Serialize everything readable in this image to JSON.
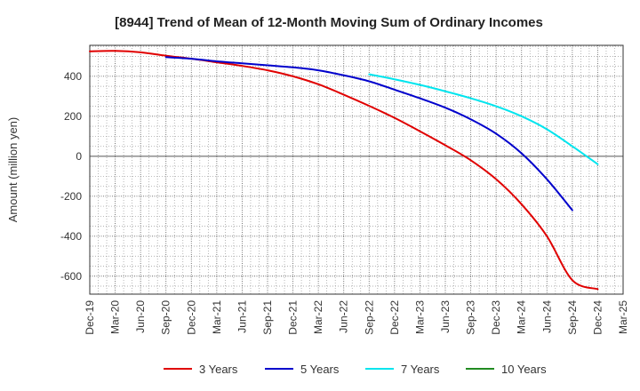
{
  "chart_data": {
    "type": "line",
    "title": "[8944]  Trend of Mean of 12-Month Moving Sum of Ordinary Incomes",
    "xlabel": "",
    "ylabel": "Amount (million yen)",
    "ylim": [
      -690,
      555
    ],
    "yticks": [
      -600,
      -400,
      -200,
      0,
      200,
      400
    ],
    "x_categories": [
      "Dec-19",
      "Mar-20",
      "Jun-20",
      "Sep-20",
      "Dec-20",
      "Mar-21",
      "Jun-21",
      "Sep-21",
      "Dec-21",
      "Mar-22",
      "Jun-22",
      "Sep-22",
      "Dec-22",
      "Mar-23",
      "Jun-23",
      "Sep-23",
      "Dec-23",
      "Mar-24",
      "Jun-24",
      "Sep-24",
      "Dec-24",
      "Mar-25"
    ],
    "grid": true,
    "legend_position": "bottom",
    "series": [
      {
        "name": "3 Years",
        "color": "#e00000",
        "start_index": 0,
        "values": [
          525,
          527,
          520,
          503,
          488,
          470,
          452,
          430,
          400,
          360,
          308,
          252,
          192,
          125,
          55,
          -20,
          -115,
          -240,
          -400,
          -620,
          -665
        ]
      },
      {
        "name": "5 Years",
        "color": "#0000cc",
        "start_index": 3,
        "values": [
          496,
          488,
          475,
          465,
          455,
          445,
          430,
          405,
          375,
          333,
          290,
          243,
          185,
          113,
          15,
          -115,
          -270
        ]
      },
      {
        "name": "7 Years",
        "color": "#00e5ee",
        "start_index": 11,
        "values": [
          410,
          385,
          357,
          325,
          290,
          250,
          200,
          135,
          50,
          -40
        ]
      },
      {
        "name": "10 Years",
        "color": "#228b22",
        "start_index": 0,
        "values": []
      }
    ]
  }
}
